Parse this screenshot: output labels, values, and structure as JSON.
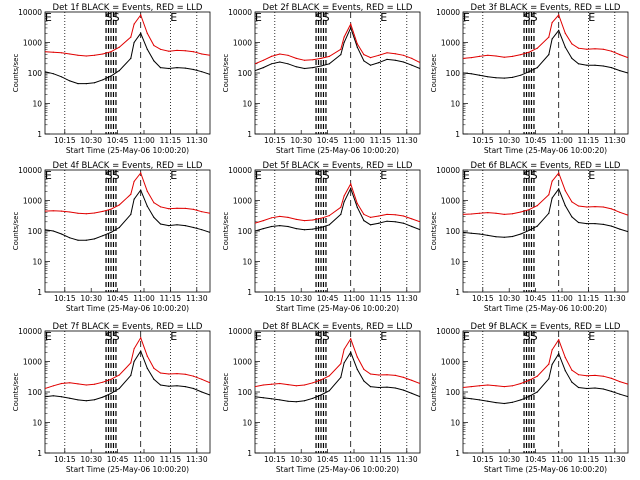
{
  "figure": {
    "xlabel": "Start Time (25-May-06 10:00:20)",
    "ylabel": "Counts/sec",
    "x_ticks": [
      "10:15",
      "10:30",
      "10:45",
      "11:00",
      "11:15",
      "11:30"
    ],
    "y_ticks": [
      "1",
      "10",
      "100",
      "1000",
      "10000"
    ],
    "colors": {
      "events": "#000000",
      "lld": "#e00000"
    }
  },
  "chart_data": [
    {
      "type": "line",
      "title": "Det 1f BLACK = Events, RED = LLD",
      "markers": [
        "E",
        "SS",
        "E"
      ],
      "series": [
        {
          "name": "BLACK = Events",
          "color": "#000000",
          "x": [
            0,
            5,
            10,
            15,
            20,
            25,
            30,
            35,
            40,
            45,
            52,
            54,
            58,
            62,
            66,
            70,
            75,
            80,
            85,
            90,
            95,
            100
          ],
          "y": [
            110,
            95,
            75,
            55,
            45,
            45,
            48,
            60,
            80,
            120,
            300,
            1000,
            2000,
            600,
            250,
            150,
            140,
            150,
            145,
            130,
            110,
            90
          ]
        },
        {
          "name": "RED = LLD",
          "color": "#e00000",
          "x": [
            0,
            5,
            10,
            15,
            20,
            25,
            30,
            35,
            40,
            45,
            52,
            54,
            58,
            62,
            66,
            70,
            75,
            80,
            85,
            90,
            95,
            100
          ],
          "y": [
            500,
            480,
            460,
            420,
            380,
            360,
            380,
            420,
            500,
            700,
            1500,
            4000,
            8000,
            2000,
            800,
            600,
            520,
            550,
            540,
            500,
            420,
            380
          ]
        }
      ]
    },
    {
      "type": "line",
      "title": "Det 2f BLACK = Events, RED = LLD",
      "markers": [
        "E",
        "SS",
        "E"
      ],
      "series": [
        {
          "name": "BLACK = Events",
          "color": "#000000",
          "x": [
            0,
            5,
            10,
            15,
            20,
            25,
            30,
            35,
            40,
            45,
            52,
            54,
            58,
            62,
            66,
            70,
            75,
            80,
            85,
            90,
            95,
            100
          ],
          "y": [
            120,
            150,
            200,
            230,
            200,
            160,
            140,
            150,
            170,
            200,
            400,
            1000,
            3000,
            700,
            250,
            180,
            220,
            280,
            260,
            230,
            180,
            140
          ]
        },
        {
          "name": "RED = LLD",
          "color": "#e00000",
          "x": [
            0,
            5,
            10,
            15,
            20,
            25,
            30,
            35,
            40,
            45,
            52,
            54,
            58,
            62,
            66,
            70,
            75,
            80,
            85,
            90,
            95,
            100
          ],
          "y": [
            200,
            260,
            350,
            420,
            380,
            300,
            260,
            270,
            300,
            350,
            600,
            1500,
            4000,
            900,
            400,
            320,
            380,
            460,
            430,
            380,
            300,
            220
          ]
        }
      ]
    },
    {
      "type": "line",
      "title": "Det 3f BLACK = Events, RED = LLD",
      "markers": [
        "E",
        "SS",
        "E"
      ],
      "series": [
        {
          "name": "BLACK = Events",
          "color": "#000000",
          "x": [
            0,
            5,
            10,
            15,
            20,
            25,
            30,
            35,
            40,
            45,
            52,
            54,
            58,
            62,
            66,
            70,
            75,
            80,
            85,
            90,
            95,
            100
          ],
          "y": [
            100,
            95,
            85,
            75,
            70,
            68,
            72,
            85,
            110,
            150,
            400,
            1300,
            2500,
            700,
            300,
            200,
            180,
            180,
            170,
            150,
            120,
            100
          ]
        },
        {
          "name": "RED = LLD",
          "color": "#e00000",
          "x": [
            0,
            5,
            10,
            15,
            20,
            25,
            30,
            35,
            40,
            45,
            52,
            54,
            58,
            62,
            66,
            70,
            75,
            80,
            85,
            90,
            95,
            100
          ],
          "y": [
            300,
            320,
            350,
            380,
            360,
            330,
            350,
            400,
            480,
            650,
            1500,
            4500,
            8000,
            2000,
            900,
            650,
            600,
            620,
            600,
            520,
            400,
            320
          ]
        }
      ]
    },
    {
      "type": "line",
      "title": "Det 4f BLACK = Events, RED = LLD",
      "markers": [
        "E",
        "SS",
        "E"
      ],
      "series": [
        {
          "name": "BLACK = Events",
          "color": "#000000",
          "x": [
            0,
            5,
            10,
            15,
            20,
            25,
            30,
            35,
            40,
            45,
            52,
            54,
            58,
            62,
            66,
            70,
            75,
            80,
            85,
            90,
            95,
            100
          ],
          "y": [
            110,
            100,
            80,
            60,
            50,
            50,
            55,
            70,
            90,
            130,
            350,
            1100,
            2200,
            650,
            280,
            170,
            150,
            160,
            150,
            130,
            110,
            90
          ]
        },
        {
          "name": "RED = LLD",
          "color": "#e00000",
          "x": [
            0,
            5,
            10,
            15,
            20,
            25,
            30,
            35,
            40,
            45,
            52,
            54,
            58,
            62,
            66,
            70,
            75,
            80,
            85,
            90,
            95,
            100
          ],
          "y": [
            450,
            460,
            450,
            420,
            380,
            370,
            390,
            440,
            520,
            720,
            1600,
            4200,
            8000,
            2000,
            850,
            620,
            540,
            560,
            550,
            510,
            430,
            380
          ]
        }
      ]
    },
    {
      "type": "line",
      "title": "Det 5f BLACK = Events, RED = LLD",
      "markers": [
        "E",
        "SS",
        "E"
      ],
      "series": [
        {
          "name": "BLACK = Events",
          "color": "#000000",
          "x": [
            0,
            5,
            10,
            15,
            20,
            25,
            30,
            35,
            40,
            45,
            52,
            54,
            58,
            62,
            66,
            70,
            75,
            80,
            85,
            90,
            95,
            100
          ],
          "y": [
            100,
            120,
            140,
            150,
            140,
            120,
            110,
            115,
            130,
            160,
            350,
            900,
            2500,
            600,
            220,
            160,
            180,
            210,
            200,
            180,
            140,
            110
          ]
        },
        {
          "name": "RED = LLD",
          "color": "#e00000",
          "x": [
            0,
            5,
            10,
            15,
            20,
            25,
            30,
            35,
            40,
            45,
            52,
            54,
            58,
            62,
            66,
            70,
            75,
            80,
            85,
            90,
            95,
            100
          ],
          "y": [
            180,
            220,
            270,
            300,
            280,
            240,
            220,
            230,
            260,
            320,
            600,
            1400,
            3500,
            800,
            350,
            280,
            310,
            350,
            340,
            310,
            250,
            200
          ]
        }
      ]
    },
    {
      "type": "line",
      "title": "Det 6f BLACK = Events, RED = LLD",
      "markers": [
        "E",
        "SS",
        "E"
      ],
      "series": [
        {
          "name": "BLACK = Events",
          "color": "#000000",
          "x": [
            0,
            5,
            10,
            15,
            20,
            25,
            30,
            35,
            40,
            45,
            52,
            54,
            58,
            62,
            66,
            70,
            75,
            80,
            85,
            90,
            95,
            100
          ],
          "y": [
            90,
            85,
            80,
            72,
            65,
            62,
            66,
            80,
            105,
            145,
            380,
            1200,
            2400,
            680,
            290,
            190,
            175,
            175,
            165,
            145,
            115,
            95
          ]
        },
        {
          "name": "RED = LLD",
          "color": "#e00000",
          "x": [
            0,
            5,
            10,
            15,
            20,
            25,
            30,
            35,
            40,
            45,
            52,
            54,
            58,
            62,
            66,
            70,
            75,
            80,
            85,
            90,
            95,
            100
          ],
          "y": [
            350,
            360,
            380,
            400,
            380,
            350,
            370,
            420,
            500,
            680,
            1550,
            4300,
            8000,
            2100,
            900,
            660,
            610,
            630,
            610,
            530,
            410,
            330
          ]
        }
      ]
    },
    {
      "type": "line",
      "title": "Det 7f BLACK = Events, RED = LLD",
      "markers": [
        "E",
        "SS",
        "E"
      ],
      "series": [
        {
          "name": "BLACK = Events",
          "color": "#000000",
          "x": [
            0,
            5,
            10,
            15,
            20,
            25,
            30,
            35,
            40,
            45,
            52,
            54,
            58,
            62,
            66,
            70,
            75,
            80,
            85,
            90,
            95,
            100
          ],
          "y": [
            70,
            75,
            70,
            62,
            55,
            52,
            56,
            68,
            90,
            130,
            350,
            1000,
            2200,
            600,
            260,
            170,
            155,
            160,
            150,
            130,
            100,
            80
          ]
        },
        {
          "name": "RED = LLD",
          "color": "#e00000",
          "x": [
            0,
            5,
            10,
            15,
            20,
            25,
            30,
            35,
            40,
            45,
            52,
            54,
            58,
            62,
            66,
            70,
            75,
            80,
            85,
            90,
            95,
            100
          ],
          "y": [
            130,
            160,
            190,
            200,
            185,
            170,
            180,
            210,
            260,
            360,
            900,
            2600,
            6000,
            1500,
            600,
            420,
            390,
            400,
            380,
            330,
            260,
            200
          ]
        }
      ]
    },
    {
      "type": "line",
      "title": "Det 8f BLACK = Events, RED = LLD",
      "markers": [
        "E",
        "SS",
        "E"
      ],
      "series": [
        {
          "name": "BLACK = Events",
          "color": "#000000",
          "x": [
            0,
            5,
            10,
            15,
            20,
            25,
            30,
            35,
            40,
            45,
            52,
            54,
            58,
            62,
            66,
            70,
            75,
            80,
            85,
            90,
            95,
            100
          ],
          "y": [
            70,
            65,
            60,
            55,
            50,
            48,
            52,
            62,
            80,
            110,
            300,
            900,
            2000,
            550,
            230,
            150,
            140,
            145,
            135,
            115,
            90,
            70
          ]
        },
        {
          "name": "RED = LLD",
          "color": "#e00000",
          "x": [
            0,
            5,
            10,
            15,
            20,
            25,
            30,
            35,
            40,
            45,
            52,
            54,
            58,
            62,
            66,
            70,
            75,
            80,
            85,
            90,
            95,
            100
          ],
          "y": [
            150,
            170,
            180,
            190,
            175,
            160,
            170,
            200,
            250,
            340,
            850,
            2500,
            5500,
            1400,
            550,
            390,
            360,
            370,
            350,
            300,
            240,
            190
          ]
        }
      ]
    },
    {
      "type": "line",
      "title": "Det 9f BLACK = Events, RED = LLD",
      "markers": [
        "E",
        "SS",
        "E"
      ],
      "series": [
        {
          "name": "BLACK = Events",
          "color": "#000000",
          "x": [
            0,
            5,
            10,
            15,
            20,
            25,
            30,
            35,
            40,
            45,
            52,
            54,
            58,
            62,
            66,
            70,
            75,
            80,
            85,
            90,
            95,
            100
          ],
          "y": [
            65,
            60,
            55,
            50,
            45,
            42,
            46,
            55,
            72,
            100,
            270,
            800,
            1800,
            500,
            210,
            140,
            130,
            135,
            125,
            105,
            85,
            70
          ]
        },
        {
          "name": "RED = LLD",
          "color": "#e00000",
          "x": [
            0,
            5,
            10,
            15,
            20,
            25,
            30,
            35,
            40,
            45,
            52,
            54,
            58,
            62,
            66,
            70,
            75,
            80,
            85,
            90,
            95,
            100
          ],
          "y": [
            140,
            150,
            160,
            170,
            160,
            150,
            160,
            190,
            240,
            330,
            820,
            2400,
            5200,
            1350,
            520,
            370,
            340,
            350,
            330,
            280,
            220,
            180
          ]
        }
      ]
    }
  ]
}
